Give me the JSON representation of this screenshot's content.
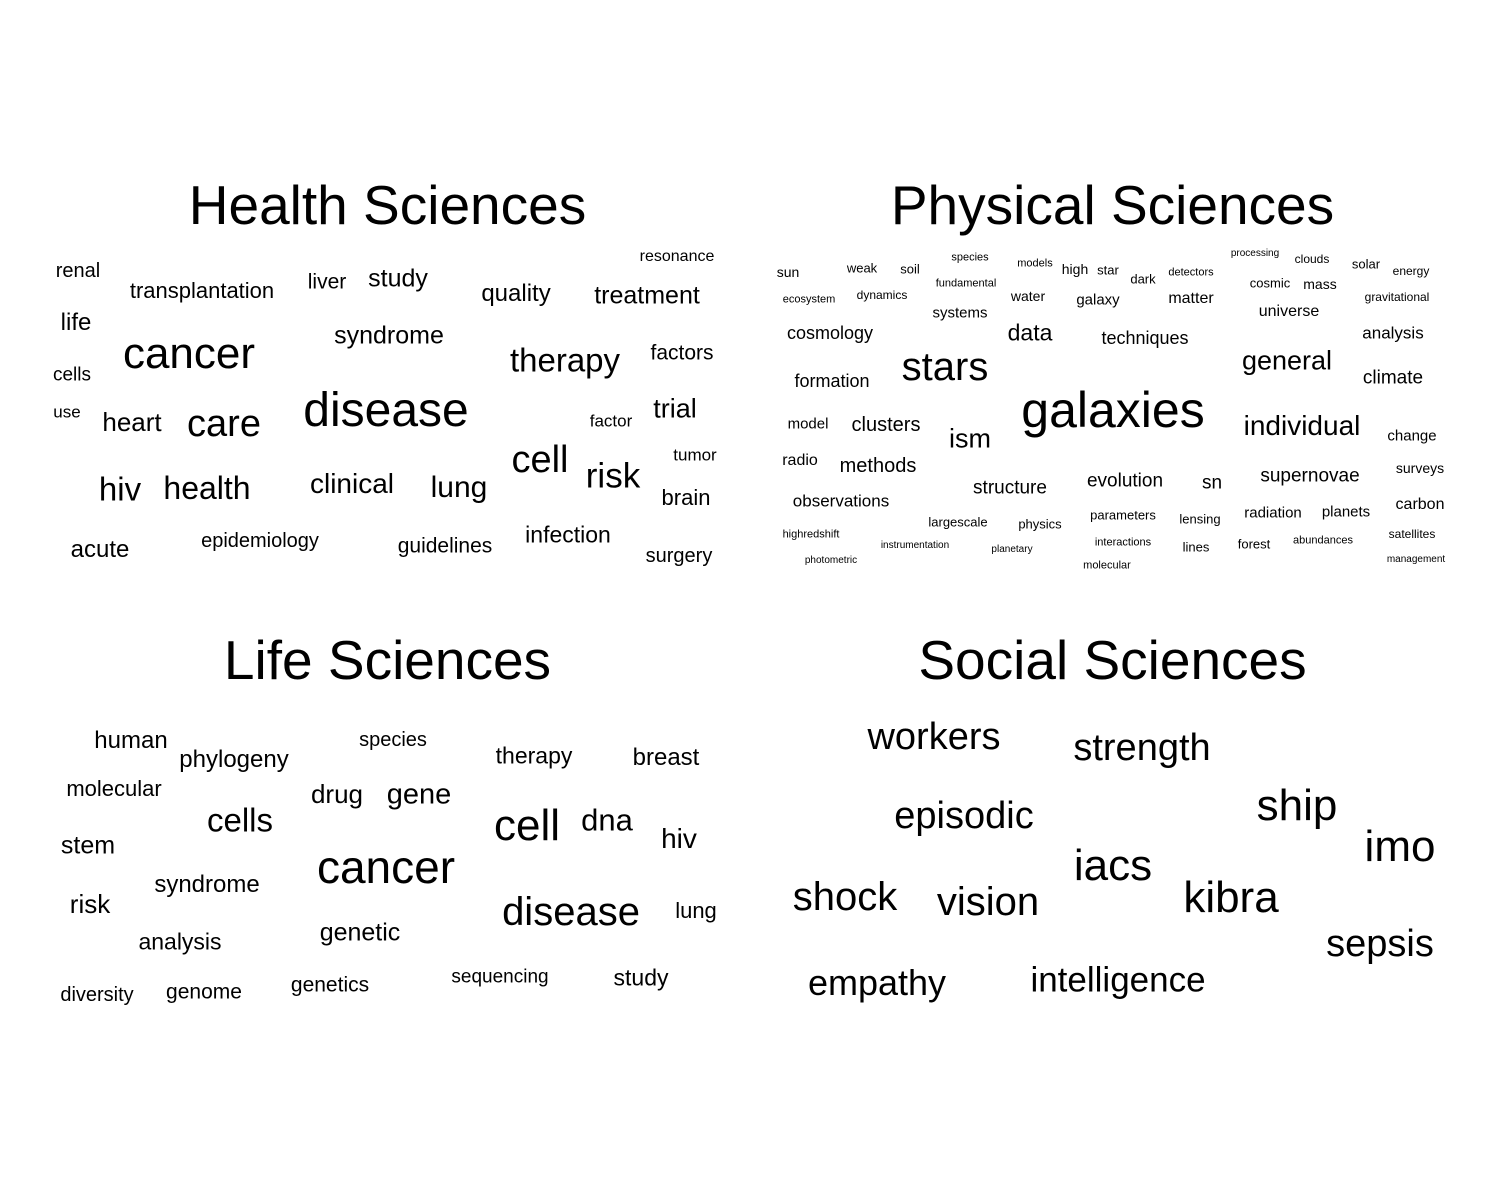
{
  "figure": {
    "panels": [
      {
        "title": "Health Sciences",
        "words": [
          "renal",
          "transplantation",
          "liver",
          "study",
          "resonance",
          "quality",
          "treatment",
          "life",
          "syndrome",
          "factors",
          "cancer",
          "therapy",
          "cells",
          "disease",
          "trial",
          "use",
          "heart",
          "care",
          "factor",
          "tumor",
          "cell",
          "hiv",
          "health",
          "clinical",
          "lung",
          "risk",
          "brain",
          "acute",
          "epidemiology",
          "guidelines",
          "infection",
          "surgery"
        ]
      },
      {
        "title": "Physical Sciences",
        "words": [
          "sun",
          "weak",
          "soil",
          "species",
          "models",
          "high",
          "star",
          "processing",
          "clouds",
          "solar",
          "energy",
          "fundamental",
          "dark",
          "detectors",
          "cosmic",
          "mass",
          "ecosystem",
          "dynamics",
          "water",
          "galaxy",
          "matter",
          "gravitational",
          "systems",
          "universe",
          "cosmology",
          "data",
          "techniques",
          "analysis",
          "stars",
          "general",
          "formation",
          "climate",
          "galaxies",
          "model",
          "clusters",
          "individual",
          "ism",
          "change",
          "radio",
          "methods",
          "surveys",
          "supernovae",
          "structure",
          "evolution",
          "sn",
          "observations",
          "carbon",
          "parameters",
          "radiation",
          "planets",
          "largescale",
          "physics",
          "lensing",
          "highredshift",
          "interactions",
          "satellites",
          "instrumentation",
          "planetary",
          "forest",
          "abundances",
          "lines",
          "management",
          "photometric",
          "molecular"
        ]
      },
      {
        "title": "Life Sciences",
        "words": [
          "human",
          "phylogeny",
          "species",
          "therapy",
          "breast",
          "molecular",
          "drug",
          "gene",
          "cells",
          "cell",
          "dna",
          "stem",
          "hiv",
          "cancer",
          "syndrome",
          "risk",
          "disease",
          "lung",
          "analysis",
          "genetic",
          "sequencing",
          "study",
          "diversity",
          "genome",
          "genetics"
        ]
      },
      {
        "title": "Social Sciences",
        "words": [
          "workers",
          "strength",
          "ship",
          "episodic",
          "imo",
          "iacs",
          "shock",
          "vision",
          "kibra",
          "sepsis",
          "empathy",
          "intelligence"
        ]
      }
    ]
  }
}
